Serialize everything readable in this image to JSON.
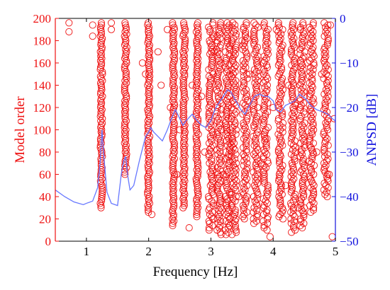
{
  "chart_data": {
    "type": "scatter",
    "title": "",
    "xlabel": "Frequency [Hz]",
    "ylabel": "Model order",
    "y2label": "ANPSD [dB]",
    "xlim": [
      0.5,
      5
    ],
    "ylim": [
      0,
      200
    ],
    "y2lim": [
      -50,
      0
    ],
    "xticks": [
      1,
      2,
      3,
      4,
      5
    ],
    "yticks": [
      0,
      20,
      40,
      60,
      80,
      100,
      120,
      140,
      160,
      180,
      200
    ],
    "y2ticks": [
      0,
      -10,
      -20,
      -30,
      -40,
      -50
    ],
    "grid": false,
    "colors": {
      "poles": "#ee1111",
      "anpsd": "#6677ff",
      "left_axis": "#ee1111",
      "right_axis": "#1111dd",
      "frame": "#000000"
    },
    "series": [
      {
        "kind": "stable-pole-columns",
        "columns": [
          {
            "f": 1.24,
            "min": 30,
            "max": 196,
            "step": 2
          },
          {
            "f": 1.63,
            "min": 60,
            "max": 196,
            "step": 2
          },
          {
            "f": 2.0,
            "min": 25,
            "max": 196,
            "step": 2
          },
          {
            "f": 2.4,
            "min": 14,
            "max": 196,
            "step": 2
          },
          {
            "f": 2.57,
            "min": 30,
            "max": 196,
            "step": 2
          },
          {
            "f": 2.78,
            "min": 22,
            "max": 196,
            "step": 2
          },
          {
            "f": 3.0,
            "min": 10,
            "max": 196,
            "step": 2
          },
          {
            "f": 3.13,
            "min": 6,
            "max": 196,
            "step": 2
          },
          {
            "f": 3.27,
            "min": 5,
            "max": 196,
            "step": 2
          },
          {
            "f": 3.37,
            "min": 6,
            "max": 196,
            "step": 2
          },
          {
            "f": 3.55,
            "min": 20,
            "max": 196,
            "step": 2
          },
          {
            "f": 3.72,
            "min": 15,
            "max": 196,
            "step": 2
          },
          {
            "f": 3.88,
            "min": 10,
            "max": 196,
            "step": 2
          },
          {
            "f": 4.12,
            "min": 20,
            "max": 196,
            "step": 2
          },
          {
            "f": 4.32,
            "min": 8,
            "max": 196,
            "step": 2
          },
          {
            "f": 4.47,
            "min": 12,
            "max": 196,
            "step": 2
          },
          {
            "f": 4.62,
            "min": 25,
            "max": 196,
            "step": 2
          },
          {
            "f": 4.85,
            "min": 40,
            "max": 196,
            "step": 2
          }
        ],
        "scattered": [
          [
            0.72,
            196
          ],
          [
            0.72,
            188
          ],
          [
            1.1,
            194
          ],
          [
            1.1,
            184
          ],
          [
            1.4,
            196
          ],
          [
            1.4,
            190
          ],
          [
            1.9,
            160
          ],
          [
            1.95,
            150
          ],
          [
            2.05,
            24
          ],
          [
            2.15,
            170
          ],
          [
            2.2,
            140
          ],
          [
            2.3,
            190
          ],
          [
            2.35,
            120
          ],
          [
            2.5,
            100
          ],
          [
            2.65,
            12
          ],
          [
            2.7,
            140
          ],
          [
            2.85,
            130
          ],
          [
            2.9,
            80
          ],
          [
            3.05,
            170
          ],
          [
            3.2,
            60
          ],
          [
            3.45,
            40
          ],
          [
            3.5,
            180
          ],
          [
            3.62,
            150
          ],
          [
            3.8,
            70
          ],
          [
            3.95,
            4
          ],
          [
            4.0,
            120
          ],
          [
            4.05,
            190
          ],
          [
            4.2,
            50
          ],
          [
            4.25,
            140
          ],
          [
            4.4,
            30
          ],
          [
            4.55,
            160
          ],
          [
            4.7,
            80
          ],
          [
            4.78,
            150
          ],
          [
            4.9,
            60
          ],
          [
            4.92,
            194
          ],
          [
            4.95,
            4
          ],
          [
            4.98,
            110
          ],
          [
            3.25,
            100
          ],
          [
            2.45,
            60
          ],
          [
            3.9,
            92
          ]
        ]
      },
      {
        "kind": "anpsd-line",
        "x": [
          0.5,
          0.65,
          0.8,
          0.95,
          1.0,
          1.1,
          1.18,
          1.22,
          1.25,
          1.28,
          1.33,
          1.4,
          1.5,
          1.56,
          1.6,
          1.63,
          1.66,
          1.7,
          1.76,
          1.85,
          1.95,
          2.0,
          2.03,
          2.08,
          2.15,
          2.22,
          2.3,
          2.38,
          2.43,
          2.5,
          2.55,
          2.6,
          2.7,
          2.78,
          2.85,
          2.92,
          3.0,
          3.05,
          3.1,
          3.15,
          3.2,
          3.27,
          3.32,
          3.4,
          3.48,
          3.55,
          3.62,
          3.7,
          3.78,
          3.85,
          3.92,
          4.0,
          4.05,
          4.12,
          4.2,
          4.28,
          4.35,
          4.42,
          4.47,
          4.52,
          4.6,
          4.7,
          4.8,
          4.88,
          4.95,
          5.0
        ],
        "y": [
          -38.5,
          -40.0,
          -41.2,
          -41.8,
          -41.5,
          -41.0,
          -38.0,
          -32.5,
          -25.0,
          -31.0,
          -39.0,
          -41.5,
          -42.0,
          -35.0,
          -32.0,
          -31.0,
          -35.0,
          -38.5,
          -37.5,
          -32.0,
          -26.5,
          -25.5,
          -24.5,
          -25.5,
          -26.5,
          -27.5,
          -25.0,
          -22.0,
          -20.5,
          -22.5,
          -24.0,
          -23.0,
          -21.5,
          -23.0,
          -24.0,
          -24.5,
          -23.0,
          -21.0,
          -19.5,
          -18.5,
          -17.5,
          -16.0,
          -16.5,
          -18.5,
          -20.5,
          -21.5,
          -19.5,
          -17.5,
          -17.0,
          -17.5,
          -17.5,
          -18.5,
          -20.5,
          -21.0,
          -19.5,
          -19.0,
          -18.5,
          -17.0,
          -17.5,
          -18.0,
          -19.5,
          -20.5,
          -21.0,
          -21.5,
          -22.5,
          -23.0
        ]
      }
    ]
  }
}
